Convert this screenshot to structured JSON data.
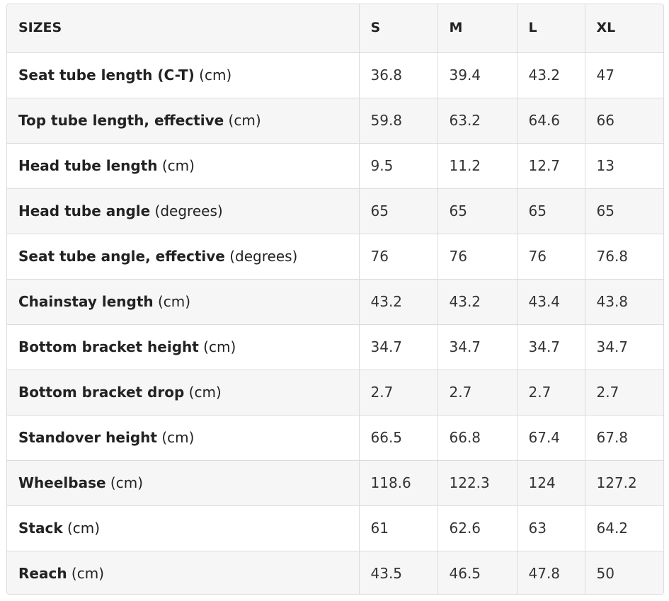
{
  "table": {
    "headers": [
      "SIZES",
      "S",
      "M",
      "L",
      "XL"
    ],
    "rows": [
      {
        "name": "Seat tube length (C-T)",
        "unit": " (cm)",
        "values": [
          "36.8",
          "39.4",
          "43.2",
          "47"
        ]
      },
      {
        "name": "Top tube length, effective",
        "unit": " (cm)",
        "values": [
          "59.8",
          "63.2",
          "64.6",
          "66"
        ]
      },
      {
        "name": "Head tube length",
        "unit": " (cm)",
        "values": [
          "9.5",
          "11.2",
          "12.7",
          "13"
        ]
      },
      {
        "name": "Head tube angle",
        "unit": " (degrees)",
        "values": [
          "65",
          "65",
          "65",
          "65"
        ]
      },
      {
        "name": "Seat tube angle, effective",
        "unit": " (degrees)",
        "values": [
          "76",
          "76",
          "76",
          "76.8"
        ]
      },
      {
        "name": "Chainstay length",
        "unit": " (cm)",
        "values": [
          "43.2",
          "43.2",
          "43.4",
          "43.8"
        ]
      },
      {
        "name": "Bottom bracket height",
        "unit": " (cm)",
        "values": [
          "34.7",
          "34.7",
          "34.7",
          "34.7"
        ]
      },
      {
        "name": "Bottom bracket drop",
        "unit": " (cm)",
        "values": [
          "2.7",
          "2.7",
          "2.7",
          "2.7"
        ]
      },
      {
        "name": "Standover height",
        "unit": " (cm)",
        "values": [
          "66.5",
          "66.8",
          "67.4",
          "67.8"
        ]
      },
      {
        "name": "Wheelbase",
        "unit": " (cm)",
        "values": [
          "118.6",
          "122.3",
          "124",
          "127.2"
        ]
      },
      {
        "name": "Stack",
        "unit": " (cm)",
        "values": [
          "61",
          "62.6",
          "63",
          "64.2"
        ]
      },
      {
        "name": "Reach",
        "unit": " (cm)",
        "values": [
          "43.5",
          "46.5",
          "47.8",
          "50"
        ]
      }
    ]
  }
}
